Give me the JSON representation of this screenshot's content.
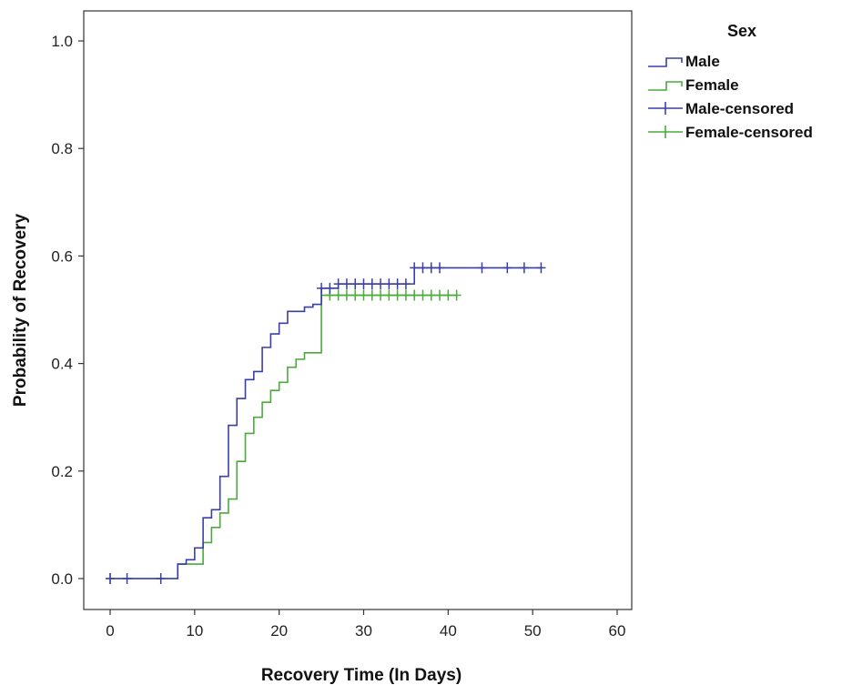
{
  "chart_data": {
    "type": "line",
    "step": true,
    "xlabel": "Recovery Time (In Days)",
    "ylabel": "Probability of Recovery",
    "xlim": [
      0,
      60
    ],
    "ylim": [
      0,
      1.0
    ],
    "x_ticks": [
      0,
      10,
      20,
      30,
      40,
      50,
      60
    ],
    "y_ticks": [
      0.0,
      0.2,
      0.4,
      0.6,
      0.8,
      1.0
    ],
    "x_tick_labels": [
      "0",
      "10",
      "20",
      "30",
      "40",
      "50",
      "60"
    ],
    "y_tick_labels": [
      "0.0",
      "0.2",
      "0.4",
      "0.6",
      "0.8",
      "1.0"
    ],
    "grid": false,
    "legend": {
      "title": "Sex",
      "position": "top-right",
      "entries": [
        "Male",
        "Female",
        "Male-censored",
        "Female-censored"
      ]
    },
    "series": [
      {
        "name": "Male",
        "color": "#3a3fa8",
        "steps": [
          [
            0,
            0.0
          ],
          [
            8,
            0.027
          ],
          [
            9,
            0.035
          ],
          [
            10,
            0.057
          ],
          [
            11,
            0.113
          ],
          [
            12,
            0.128
          ],
          [
            13,
            0.19
          ],
          [
            14,
            0.285
          ],
          [
            15,
            0.335
          ],
          [
            16,
            0.37
          ],
          [
            17,
            0.385
          ],
          [
            18,
            0.43
          ],
          [
            19,
            0.455
          ],
          [
            20,
            0.475
          ],
          [
            21,
            0.497
          ],
          [
            23,
            0.505
          ],
          [
            24,
            0.51
          ],
          [
            25,
            0.54
          ],
          [
            27,
            0.548
          ],
          [
            36,
            0.578
          ],
          [
            51,
            0.578
          ]
        ],
        "censored": [
          [
            0,
            0.0
          ],
          [
            2,
            0.0
          ],
          [
            6,
            0.0
          ],
          [
            25,
            0.54
          ],
          [
            26,
            0.54
          ],
          [
            27,
            0.548
          ],
          [
            28,
            0.548
          ],
          [
            29,
            0.548
          ],
          [
            30,
            0.548
          ],
          [
            31,
            0.548
          ],
          [
            32,
            0.548
          ],
          [
            33,
            0.548
          ],
          [
            34,
            0.548
          ],
          [
            35,
            0.548
          ],
          [
            36,
            0.578
          ],
          [
            37,
            0.578
          ],
          [
            38,
            0.578
          ],
          [
            39,
            0.578
          ],
          [
            44,
            0.578
          ],
          [
            47,
            0.578
          ],
          [
            49,
            0.578
          ],
          [
            51,
            0.578
          ]
        ]
      },
      {
        "name": "Female",
        "color": "#4aaa3a",
        "steps": [
          [
            0,
            0.0
          ],
          [
            8,
            0.027
          ],
          [
            11,
            0.067
          ],
          [
            12,
            0.095
          ],
          [
            13,
            0.122
          ],
          [
            14,
            0.148
          ],
          [
            15,
            0.218
          ],
          [
            16,
            0.27
          ],
          [
            17,
            0.3
          ],
          [
            18,
            0.328
          ],
          [
            19,
            0.35
          ],
          [
            20,
            0.365
          ],
          [
            21,
            0.393
          ],
          [
            22,
            0.408
          ],
          [
            23,
            0.42
          ],
          [
            25,
            0.527
          ],
          [
            41,
            0.527
          ]
        ],
        "censored": [
          [
            0,
            0.0
          ],
          [
            26,
            0.527
          ],
          [
            27,
            0.527
          ],
          [
            28,
            0.527
          ],
          [
            29,
            0.527
          ],
          [
            30,
            0.527
          ],
          [
            31,
            0.527
          ],
          [
            32,
            0.527
          ],
          [
            33,
            0.527
          ],
          [
            34,
            0.527
          ],
          [
            35,
            0.527
          ],
          [
            36,
            0.527
          ],
          [
            37,
            0.527
          ],
          [
            38,
            0.527
          ],
          [
            39,
            0.527
          ],
          [
            40,
            0.527
          ],
          [
            41,
            0.527
          ]
        ]
      }
    ]
  }
}
